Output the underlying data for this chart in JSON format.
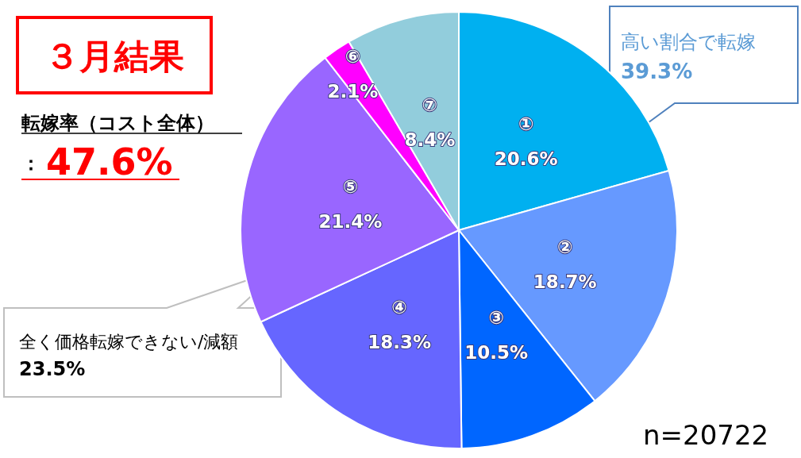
{
  "chart_data": {
    "type": "pie",
    "title": "３月結果",
    "categories": [
      "①",
      "②",
      "③",
      "④",
      "⑤",
      "⑥",
      "⑦"
    ],
    "values": [
      20.6,
      18.7,
      10.5,
      18.3,
      21.4,
      2.1,
      8.4
    ],
    "value_labels": [
      "20.6%",
      "18.7%",
      "10.5%",
      "18.3%",
      "21.4%",
      "2.1%",
      "8.4%"
    ],
    "colors": [
      "#00b0f0",
      "#6699ff",
      "#0066ff",
      "#6666ff",
      "#9966ff",
      "#ff00ff",
      "#92cddc"
    ],
    "annotations": [
      "転嫁率（コスト全体）",
      "：",
      "47.6%",
      "高い割合で転嫁",
      "39.3%",
      "全く価格転嫁できない/減額",
      "23.5%",
      "n=20722"
    ],
    "legend": false
  }
}
